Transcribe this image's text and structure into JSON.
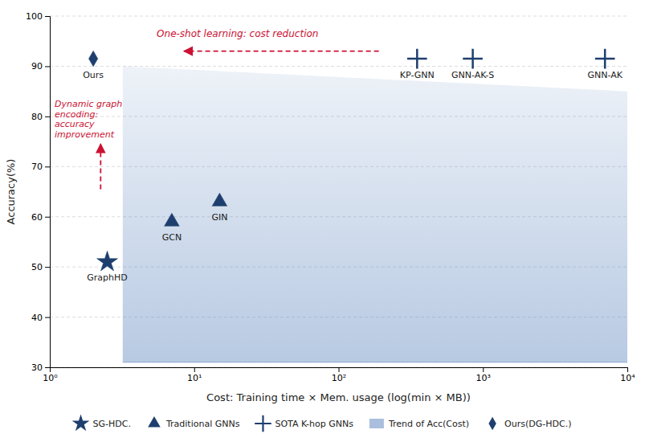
{
  "chart_data": {
    "type": "scatter",
    "xlabel": "Cost: Training time × Mem. usage (log(min × MB))",
    "ylabel": "Accuracy(%)",
    "log": "x",
    "xlim": [
      1,
      10000
    ],
    "xticks": [
      {
        "value": 1,
        "label": "10⁰"
      },
      {
        "value": 10,
        "label": "10¹"
      },
      {
        "value": 100,
        "label": "10²"
      },
      {
        "value": 1000,
        "label": "10³"
      },
      {
        "value": 10000,
        "label": "10⁴"
      }
    ],
    "ylim": [
      30,
      100
    ],
    "yticks": [
      30,
      40,
      50,
      60,
      70,
      80,
      90,
      100
    ],
    "grid": "y",
    "legend": "bottom",
    "series": [
      {
        "name": "SG-HDC.",
        "marker": "star",
        "color": "#1e3f6e",
        "x": [
          2.5
        ],
        "values": [
          51
        ],
        "labels": [
          "GraphHD"
        ]
      },
      {
        "name": "Traditional GNNs",
        "marker": "triangle",
        "color": "#1e3f6e",
        "x": [
          7.0,
          15.0
        ],
        "values": [
          59,
          63
        ],
        "labels": [
          "GCN",
          "GIN"
        ]
      },
      {
        "name": "SOTA K-hop GNNs",
        "marker": "plus",
        "color": "#1e3f6e",
        "x": [
          350,
          850,
          7000
        ],
        "values": [
          91.5,
          91.5,
          91.5
        ],
        "labels": [
          "KP-GNN",
          "GNN-AK-S",
          "GNN-AK"
        ]
      },
      {
        "name": "Trend of Acc(Cost)",
        "type": "area",
        "color": "#5580bb",
        "x": [
          3.2,
          10000
        ],
        "values": [
          90,
          85
        ],
        "baseline": 31
      },
      {
        "name": "Ours(DG-HDC.)",
        "marker": "diamond",
        "color": "#1e3f6e",
        "x": [
          2.0
        ],
        "values": [
          91.5
        ],
        "labels": [
          "Ours"
        ]
      }
    ],
    "annotations": [
      {
        "text": "One-shot learning: cost reduction",
        "color": "#cc1133",
        "x": 5.5,
        "y": 96.5,
        "arrow": {
          "x": [
            190,
            8.5
          ],
          "y": [
            93.0,
            93.0
          ]
        }
      },
      {
        "text": "Dynamic graph\nencoding:\naccuracy\nimprovement",
        "color": "#cc1133",
        "x": 1.08,
        "y": 83.5,
        "arrow": {
          "x": [
            2.25,
            2.25
          ],
          "y": [
            65.5,
            74.5
          ]
        }
      }
    ]
  }
}
